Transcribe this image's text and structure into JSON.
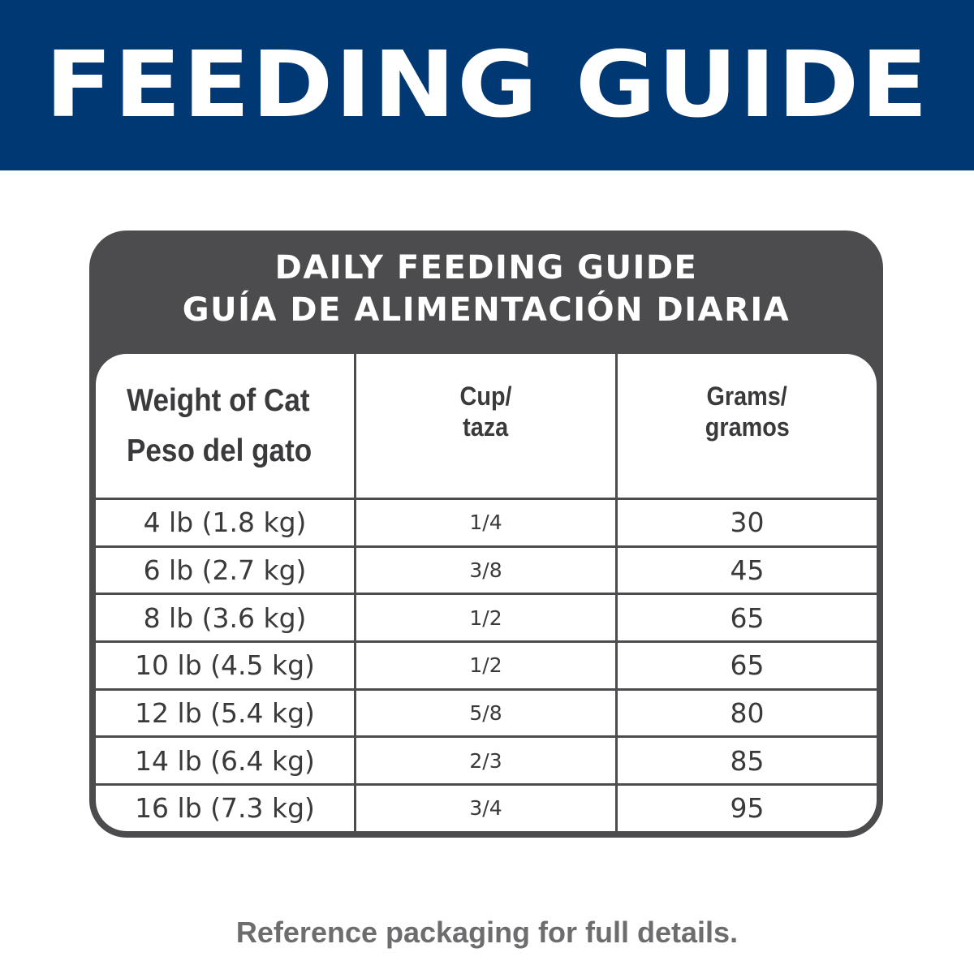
{
  "header": {
    "title": "FEEDING GUIDE",
    "color": "#003873"
  },
  "table": {
    "title_en": "DAILY FEEDING GUIDE",
    "title_es": "GUÍA DE ALIMENTACIÓN DIARIA",
    "columns": [
      {
        "line1": "Weight of Cat",
        "line2": "Peso del gato"
      },
      {
        "line1": "Cup/",
        "line2": "taza"
      },
      {
        "line1": "Grams/",
        "line2": "gramos"
      }
    ],
    "rows": [
      {
        "weight": "4 lb (1.8 kg)",
        "cup": "1/4",
        "grams": "30"
      },
      {
        "weight": "6 lb (2.7 kg)",
        "cup": "3/8",
        "grams": "45"
      },
      {
        "weight": "8 lb (3.6 kg)",
        "cup": "1/2",
        "grams": "65"
      },
      {
        "weight": "10 lb (4.5 kg)",
        "cup": "1/2",
        "grams": "65"
      },
      {
        "weight": "12 lb (5.4 kg)",
        "cup": "5/8",
        "grams": "80"
      },
      {
        "weight": "14 lb (6.4 kg)",
        "cup": "2/3",
        "grams": "85"
      },
      {
        "weight": "16 lb (7.3 kg)",
        "cup": "3/4",
        "grams": "95"
      }
    ]
  },
  "footer": {
    "note": "Reference packaging for full details."
  }
}
